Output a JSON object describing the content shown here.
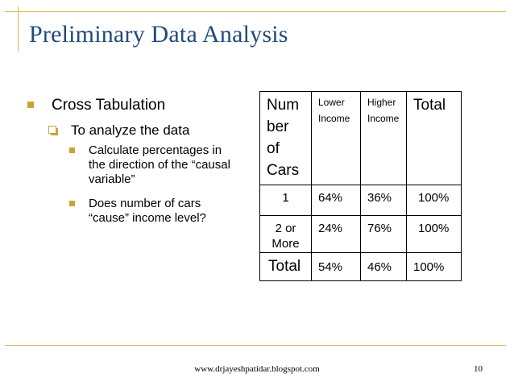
{
  "slide": {
    "title": "Preliminary Data Analysis",
    "footer": "www.drjayeshpatidar.blogspot.com",
    "page_number": "10"
  },
  "bullets": {
    "level1": "Cross Tabulation",
    "level2": "To analyze the data",
    "level3": [
      "Calculate percentages in the direction of the “causal variable”",
      "Does number of cars “cause” income level?"
    ]
  },
  "table": {
    "header": {
      "row_label": "Num\nber\nof\nCars",
      "col1": "Lower\nIncome",
      "col2": "Higher\nIncome",
      "col3": "Total"
    },
    "rows": [
      {
        "label": "1",
        "values": [
          "64%",
          "36%",
          "100%"
        ]
      },
      {
        "label": "2 or\nMore",
        "values": [
          "24%",
          "76%",
          "100%"
        ]
      },
      {
        "label": "Total",
        "values": [
          "54%",
          "46%",
          "100%"
        ]
      }
    ]
  },
  "colors": {
    "title": "#1f4a7a",
    "accent": "#c9a33a",
    "frame": "#d9b64a"
  }
}
